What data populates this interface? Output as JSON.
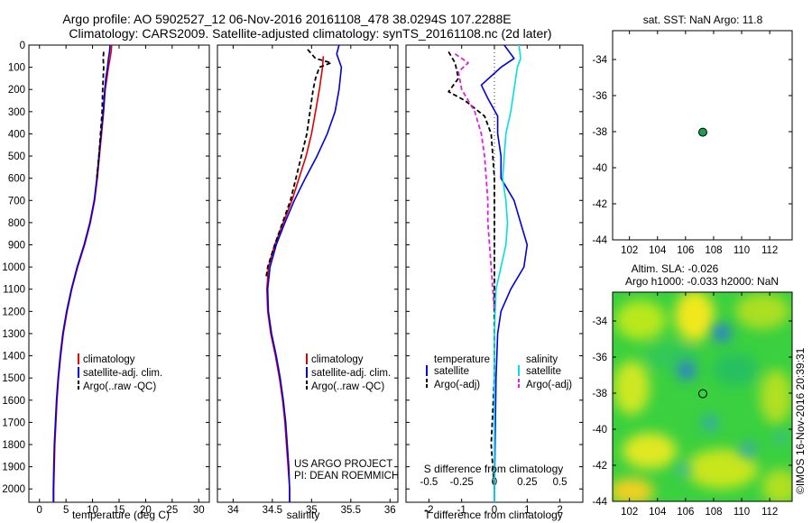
{
  "header": {
    "title_line1": "Argo profile: AO 5902527_12 06-Nov-2016 20161108_478 38.0294S 107.2288E",
    "title_line2": "Climatology: CARS2009. Satellite-adjusted climatology: synTS_20161108.nc (2d later)"
  },
  "credit": {
    "project": "US ARGO PROJECT",
    "pi": "PI: DEAN ROEMMICH",
    "watermark": "©IMOS 16-Nov-2016 20:39:31"
  },
  "colors": {
    "climatology": "#e00000",
    "satellite": "#0000e0",
    "argo": "#000000",
    "satellite_salinity": "#00e0e0",
    "argo_salinity": "#e020e0",
    "marker": "#1aa050"
  },
  "chart_data": [
    {
      "id": "temperature",
      "type": "line",
      "xlabel": "temperature (deg C)",
      "ylabel": "",
      "xlim": [
        -2,
        32
      ],
      "ylim": [
        2060,
        0
      ],
      "xticks": [
        0,
        5,
        10,
        15,
        20,
        25,
        30
      ],
      "yticks": [
        0,
        100,
        200,
        300,
        400,
        500,
        600,
        700,
        800,
        900,
        1000,
        1100,
        1200,
        1300,
        1400,
        1500,
        1600,
        1700,
        1800,
        1900,
        2000
      ],
      "legend": {
        "placement": "lower-middle",
        "entries": [
          "climatology",
          "satellite-adj. clim.",
          "Argo(..raw -QC)"
        ]
      },
      "series": [
        {
          "name": "climatology",
          "color": "#e00000",
          "style": "solid",
          "points": [
            [
              13.6,
              0
            ],
            [
              13.5,
              30
            ],
            [
              13.3,
              60
            ],
            [
              13.0,
              100
            ],
            [
              12.7,
              150
            ],
            [
              12.4,
              200
            ],
            [
              12.1,
              300
            ],
            [
              11.7,
              400
            ],
            [
              11.3,
              500
            ],
            [
              10.9,
              600
            ],
            [
              10.4,
              700
            ],
            [
              9.6,
              800
            ],
            [
              8.5,
              900
            ],
            [
              7.2,
              1000
            ],
            [
              6.1,
              1100
            ],
            [
              5.2,
              1200
            ],
            [
              4.5,
              1300
            ],
            [
              4.0,
              1400
            ],
            [
              3.6,
              1500
            ],
            [
              3.3,
              1600
            ],
            [
              3.1,
              1700
            ],
            [
              2.9,
              1800
            ],
            [
              2.8,
              1900
            ],
            [
              2.7,
              2000
            ],
            [
              2.7,
              2060
            ]
          ]
        },
        {
          "name": "satellite-adj. clim.",
          "color": "#0000e0",
          "style": "solid",
          "points": [
            [
              13.3,
              0
            ],
            [
              13.2,
              30
            ],
            [
              13.0,
              60
            ],
            [
              12.8,
              100
            ],
            [
              12.5,
              150
            ],
            [
              12.3,
              200
            ],
            [
              12.0,
              300
            ],
            [
              11.6,
              400
            ],
            [
              11.2,
              500
            ],
            [
              10.8,
              600
            ],
            [
              10.3,
              700
            ],
            [
              9.5,
              800
            ],
            [
              8.4,
              900
            ],
            [
              7.1,
              1000
            ],
            [
              6.0,
              1100
            ],
            [
              5.1,
              1200
            ],
            [
              4.4,
              1300
            ],
            [
              3.9,
              1400
            ],
            [
              3.5,
              1500
            ],
            [
              3.2,
              1600
            ],
            [
              3.0,
              1700
            ],
            [
              2.8,
              1800
            ],
            [
              2.7,
              1900
            ],
            [
              2.6,
              2000
            ],
            [
              2.6,
              2060
            ]
          ]
        },
        {
          "name": "Argo(..raw -QC)",
          "color": "#000000",
          "style": "dashed",
          "points": [
            [
              12.1,
              30
            ],
            [
              12.0,
              60
            ],
            [
              12.1,
              100
            ],
            [
              12.0,
              150
            ],
            [
              11.9,
              200
            ],
            [
              11.8,
              300
            ],
            [
              11.5,
              400
            ],
            [
              11.2,
              500
            ],
            [
              10.8,
              600
            ]
          ]
        }
      ]
    },
    {
      "id": "salinity",
      "type": "line",
      "xlabel": "salinity",
      "ylabel": "",
      "xlim": [
        33.8,
        36.1
      ],
      "ylim": [
        2060,
        0
      ],
      "xticks": [
        34,
        34.5,
        35,
        35.5,
        36
      ],
      "legend": {
        "placement": "lower-middle",
        "entries": [
          "climatology",
          "satellite-adj. clim.",
          "Argo(..raw -QC)"
        ]
      },
      "series": [
        {
          "name": "climatology",
          "color": "#e00000",
          "style": "solid",
          "points": [
            [
              35.15,
              50
            ],
            [
              35.14,
              100
            ],
            [
              35.1,
              200
            ],
            [
              35.05,
              300
            ],
            [
              35.0,
              400
            ],
            [
              34.93,
              500
            ],
            [
              34.84,
              600
            ],
            [
              34.75,
              700
            ],
            [
              34.64,
              800
            ],
            [
              34.53,
              900
            ],
            [
              34.45,
              1000
            ],
            [
              34.43,
              1100
            ],
            [
              34.44,
              1200
            ],
            [
              34.48,
              1300
            ],
            [
              34.54,
              1400
            ],
            [
              34.59,
              1500
            ],
            [
              34.63,
              1600
            ],
            [
              34.66,
              1700
            ],
            [
              34.68,
              1800
            ],
            [
              34.7,
              1900
            ],
            [
              34.72,
              2000
            ],
            [
              34.72,
              2060
            ]
          ]
        },
        {
          "name": "satellite-adj. clim.",
          "color": "#0000e0",
          "style": "solid",
          "points": [
            [
              35.35,
              0
            ],
            [
              35.32,
              40
            ],
            [
              35.38,
              100
            ],
            [
              35.35,
              200
            ],
            [
              35.3,
              300
            ],
            [
              35.2,
              400
            ],
            [
              35.07,
              500
            ],
            [
              34.92,
              600
            ],
            [
              34.78,
              700
            ],
            [
              34.66,
              800
            ],
            [
              34.55,
              900
            ],
            [
              34.47,
              1000
            ],
            [
              34.44,
              1100
            ],
            [
              34.45,
              1200
            ],
            [
              34.49,
              1300
            ],
            [
              34.55,
              1400
            ],
            [
              34.6,
              1500
            ],
            [
              34.64,
              1600
            ],
            [
              34.67,
              1700
            ],
            [
              34.69,
              1800
            ],
            [
              34.71,
              1900
            ],
            [
              34.72,
              2000
            ],
            [
              34.72,
              2060
            ]
          ]
        },
        {
          "name": "Argo(..raw -QC)",
          "color": "#000000",
          "style": "dashed",
          "points": [
            [
              34.95,
              20
            ],
            [
              35.05,
              60
            ],
            [
              35.25,
              80
            ],
            [
              35.1,
              100
            ],
            [
              35.05,
              150
            ],
            [
              35.02,
              200
            ],
            [
              34.98,
              300
            ],
            [
              34.94,
              400
            ],
            [
              34.87,
              500
            ],
            [
              34.8,
              600
            ],
            [
              34.73,
              700
            ],
            [
              34.63,
              800
            ],
            [
              34.53,
              900
            ],
            [
              34.44,
              1000
            ],
            [
              34.42,
              1050
            ]
          ]
        }
      ]
    },
    {
      "id": "differences",
      "type": "line",
      "xlabel": "T difference from climatology",
      "xlabel_top": "S difference from climatology",
      "ylabel": "",
      "xlim": [
        -2.7,
        2.7
      ],
      "ylim": [
        2060,
        0
      ],
      "xticks": [
        -2,
        -1,
        0,
        1,
        2
      ],
      "xticks_top": [
        -0.5,
        -0.25,
        0,
        0.25,
        0.5
      ],
      "legend": {
        "placement": "lower-middle",
        "temperature_header": "temperature",
        "salinity_header": "salinity",
        "entries": [
          "satellite",
          "Argo(-adj)",
          "satellite",
          "Argo(-adj)"
        ]
      },
      "series": [
        {
          "name": "temperature satellite",
          "color": "#0000e0",
          "style": "solid",
          "points": [
            [
              0.3,
              0
            ],
            [
              0.6,
              60
            ],
            [
              0.2,
              100
            ],
            [
              -0.4,
              180
            ],
            [
              -0.2,
              240
            ],
            [
              0.1,
              320
            ],
            [
              0.1,
              400
            ],
            [
              0.2,
              500
            ],
            [
              0.2,
              600
            ],
            [
              0.6,
              700
            ],
            [
              0.8,
              800
            ],
            [
              1.0,
              900
            ],
            [
              0.9,
              1000
            ],
            [
              0.5,
              1100
            ],
            [
              0.2,
              1200
            ],
            [
              0.1,
              1300
            ],
            [
              0.05,
              1500
            ],
            [
              0.0,
              2000
            ],
            [
              0.0,
              2060
            ]
          ]
        },
        {
          "name": "temperature Argo(-adj)",
          "color": "#000000",
          "style": "dashed",
          "points": [
            [
              -1.4,
              30
            ],
            [
              -1.2,
              80
            ],
            [
              -1.1,
              150
            ],
            [
              -1.4,
              210
            ],
            [
              -0.9,
              250
            ],
            [
              -0.3,
              320
            ],
            [
              -0.1,
              400
            ],
            [
              0.0,
              600
            ],
            [
              0.0,
              1000
            ],
            [
              0.0,
              1500
            ],
            [
              -0.1,
              1800
            ],
            [
              0.0,
              2000
            ]
          ]
        },
        {
          "name": "salinity satellite",
          "color": "#00e0e0",
          "style": "solid",
          "points": [
            [
              0.75,
              0
            ],
            [
              0.8,
              60
            ],
            [
              0.7,
              100
            ],
            [
              0.6,
              200
            ],
            [
              0.5,
              300
            ],
            [
              0.35,
              400
            ],
            [
              0.3,
              500
            ],
            [
              0.25,
              600
            ],
            [
              0.35,
              700
            ],
            [
              0.4,
              800
            ],
            [
              0.35,
              900
            ],
            [
              0.2,
              1000
            ],
            [
              0.05,
              1100
            ],
            [
              0.0,
              1300
            ],
            [
              0.0,
              2060
            ]
          ]
        },
        {
          "name": "salinity Argo(-adj)",
          "color": "#e020e0",
          "style": "dashed",
          "points": [
            [
              -1.2,
              40
            ],
            [
              -0.8,
              80
            ],
            [
              -1.1,
              120
            ],
            [
              -1.0,
              200
            ],
            [
              -0.6,
              300
            ],
            [
              -0.4,
              400
            ],
            [
              -0.3,
              500
            ],
            [
              -0.25,
              600
            ],
            [
              -0.2,
              700
            ],
            [
              -0.2,
              800
            ],
            [
              -0.15,
              900
            ],
            [
              -0.1,
              1000
            ],
            [
              -0.05,
              1100
            ],
            [
              0.0,
              1200
            ]
          ]
        }
      ]
    },
    {
      "id": "sst-map",
      "type": "scatter",
      "title": "sat. SST: NaN Argo: 11.8",
      "xlim": [
        100.8,
        113.6
      ],
      "ylim": [
        -44,
        -32.4
      ],
      "xticks": [
        102,
        104,
        106,
        108,
        110,
        112
      ],
      "yticks": [
        -34,
        -36,
        -38,
        -40,
        -42,
        -44
      ],
      "points": [
        [
          107.23,
          -38.03
        ]
      ]
    },
    {
      "id": "sla-map",
      "type": "heatmap",
      "title_line1": "Altim. SLA: -0.026",
      "title_line2": "Argo h1000: -0.033 h2000: NaN",
      "xlim": [
        100.8,
        113.6
      ],
      "ylim": [
        -44,
        -32.4
      ],
      "xticks": [
        102,
        104,
        106,
        108,
        110,
        112
      ],
      "yticks": [
        -34,
        -36,
        -38,
        -40,
        -42,
        -44
      ],
      "points": [
        [
          107.23,
          -38.03
        ]
      ]
    }
  ]
}
